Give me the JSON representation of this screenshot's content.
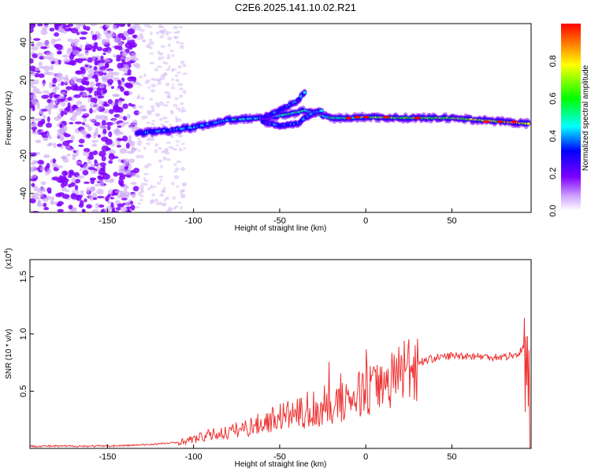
{
  "title": "C2E6.2025.141.10.02.R21",
  "chart_data": [
    {
      "type": "heatmap",
      "xlabel": "Height of straight line (km)",
      "ylabel": "Frequency (Hz)",
      "xlim": [
        -195,
        96
      ],
      "ylim": [
        -50,
        50
      ],
      "xticks": [
        -150,
        -100,
        -50,
        0,
        50
      ],
      "yticks": [
        -40,
        -20,
        0,
        20,
        40
      ],
      "colorbar": {
        "label": "Normalized spectral amplitude",
        "range": [
          0.0,
          1.0
        ],
        "ticks": [
          0.0,
          0.2,
          0.4,
          0.6,
          0.8
        ],
        "colormap": [
          "#ffffff",
          "#7f00ff",
          "#0000ff",
          "#00ffff",
          "#00ff00",
          "#ffff00",
          "#ff0000"
        ]
      },
      "features": {
        "noise_region_x": [
          -195,
          -133
        ],
        "sparse_noise_region_x": [
          -133,
          -105
        ],
        "main_trace": [
          [
            -133,
            -8
          ],
          [
            -120,
            -7
          ],
          [
            -100,
            -5
          ],
          [
            -80,
            -1
          ],
          [
            -60,
            0
          ],
          [
            -45,
            2
          ],
          [
            -35,
            4
          ],
          [
            -28,
            2
          ],
          [
            -20,
            0
          ],
          [
            -10,
            0
          ],
          [
            0,
            0.5
          ],
          [
            20,
            0
          ],
          [
            50,
            0
          ],
          [
            80,
            -2
          ],
          [
            95,
            -3
          ]
        ],
        "upper_branch": [
          [
            -60,
            0
          ],
          [
            -50,
            4
          ],
          [
            -40,
            9
          ],
          [
            -35,
            14
          ]
        ],
        "lower_branch": [
          [
            -60,
            -2
          ],
          [
            -50,
            -4
          ],
          [
            -40,
            -3
          ],
          [
            -30,
            3
          ],
          [
            -25,
            4
          ]
        ]
      }
    },
    {
      "type": "line",
      "xlabel": "Height of straight line (km)",
      "ylabel": "SNR (10 * v/v)",
      "multiplier_label": "(x10",
      "multiplier_exp": "4",
      "xlim": [
        -195,
        96
      ],
      "ylim": [
        0,
        1.65
      ],
      "xticks": [
        -150,
        -100,
        -50,
        0,
        50
      ],
      "yticks": [
        0.5,
        1.0,
        1.5
      ],
      "ytick_labels": [
        "0.5",
        "1.0",
        "1.5"
      ],
      "color": "#ee3333",
      "series": [
        {
          "x": [
            -195,
            -150,
            -130,
            -110,
            -100,
            -90,
            -80,
            -70,
            -60,
            -50,
            -40,
            -30,
            -20,
            -10,
            0,
            10,
            20,
            30,
            40,
            50,
            60,
            70,
            80,
            88,
            93,
            95
          ],
          "y": [
            0.02,
            0.02,
            0.03,
            0.05,
            0.08,
            0.12,
            0.14,
            0.18,
            0.22,
            0.28,
            0.3,
            0.32,
            0.36,
            0.42,
            0.5,
            0.55,
            0.68,
            0.75,
            0.79,
            0.81,
            0.81,
            0.8,
            0.8,
            0.82,
            0.9,
            0.2
          ]
        }
      ]
    }
  ]
}
